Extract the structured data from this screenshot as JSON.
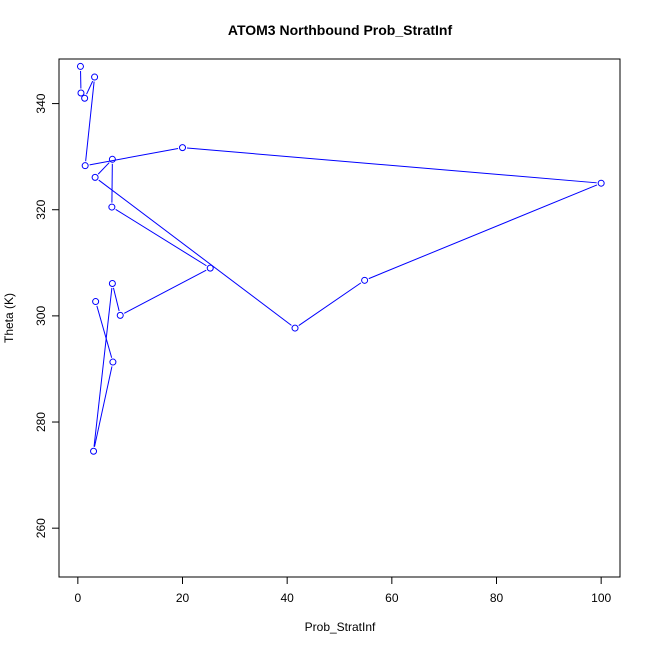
{
  "chart_data": {
    "type": "line",
    "title": "ATOM3 Northbound Prob_StratInf",
    "xlabel": "Prob_StratInf",
    "ylabel": "Theta (K)",
    "xlim": [
      -3.6,
      103.6
    ],
    "ylim": [
      250.8,
      348.4
    ],
    "xticks": [
      0,
      20,
      40,
      60,
      80,
      100
    ],
    "yticks": [
      260,
      280,
      300,
      320,
      340
    ],
    "xtick_labels": [
      "0",
      "20",
      "40",
      "60",
      "80",
      "100"
    ],
    "ytick_labels": [
      "260",
      "280",
      "300",
      "320",
      "340"
    ],
    "grid": false,
    "line_color": "#0000ff",
    "marker": "open-circle",
    "series": [
      {
        "x": [
          0.5,
          0.6,
          1.3,
          3.2,
          1.4,
          20.0,
          100.0,
          54.8,
          41.5,
          3.3,
          6.6,
          6.5,
          25.3,
          8.1,
          6.6,
          3.0,
          6.7,
          3.4
        ],
        "y": [
          347.0,
          342.0,
          341.0,
          345.0,
          328.3,
          331.7,
          325.0,
          306.7,
          297.7,
          326.1,
          329.5,
          320.5,
          309.0,
          300.1,
          306.1,
          274.5,
          291.3,
          302.7
        ]
      }
    ]
  }
}
